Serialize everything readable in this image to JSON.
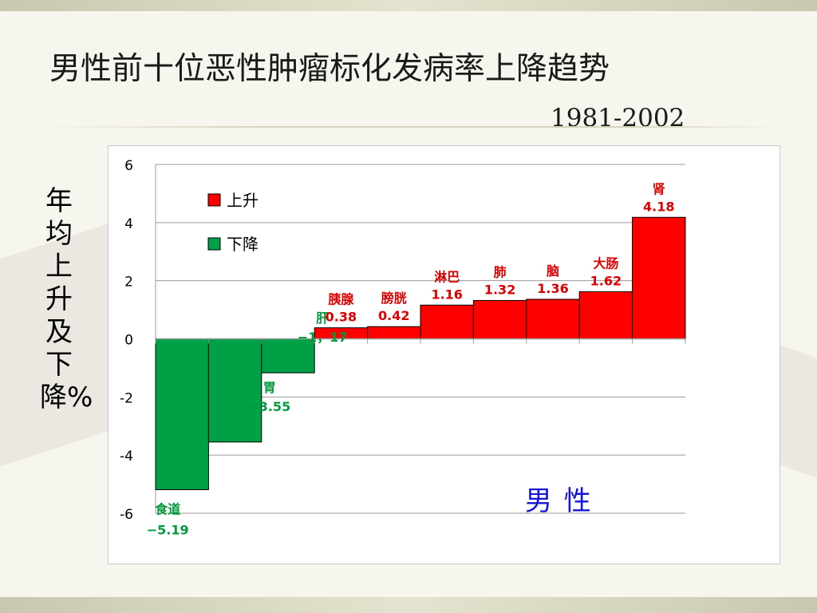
{
  "slide": {
    "title": "男性前十位恶性肿瘤标化发病率上降趋势",
    "subtitle": "1981-2002",
    "y_axis_label": "年均上升及下降%",
    "sex_label": "男  性"
  },
  "colors": {
    "rise": "#ff0000",
    "fall": "#00a046",
    "rise_label": "#dd0000",
    "fall_label": "#009a3a",
    "sex_label": "#1414d8"
  },
  "chart_data": {
    "type": "bar",
    "ylim": [
      -6,
      6
    ],
    "yticks": [
      6,
      4,
      2,
      0,
      -2,
      -4,
      -6
    ],
    "grid": true,
    "legend_position": "top-left",
    "legend": [
      {
        "name": "上升",
        "color": "#ff0000"
      },
      {
        "name": "下降",
        "color": "#00a046"
      }
    ],
    "bars": [
      {
        "category": "食道",
        "value": -5.19,
        "value_label": "−5.19",
        "group": "fall"
      },
      {
        "category": "胃",
        "value": -3.55,
        "value_label": "−3.55",
        "group": "fall"
      },
      {
        "category": "肝",
        "value": -1.17,
        "value_label": "−1，17",
        "group": "fall"
      },
      {
        "category": "胰腺",
        "value": 0.38,
        "value_label": "0.38",
        "group": "rise"
      },
      {
        "category": "膀胱",
        "value": 0.42,
        "value_label": "0.42",
        "group": "rise"
      },
      {
        "category": "淋巴",
        "value": 1.16,
        "value_label": "1.16",
        "group": "rise"
      },
      {
        "category": "肺",
        "value": 1.32,
        "value_label": "1.32",
        "group": "rise"
      },
      {
        "category": "脑",
        "value": 1.36,
        "value_label": "1.36",
        "group": "rise"
      },
      {
        "category": "大肠",
        "value": 1.62,
        "value_label": "1.62",
        "group": "rise"
      },
      {
        "category": "肾",
        "value": 4.18,
        "value_label": "4.18",
        "group": "rise"
      }
    ]
  }
}
